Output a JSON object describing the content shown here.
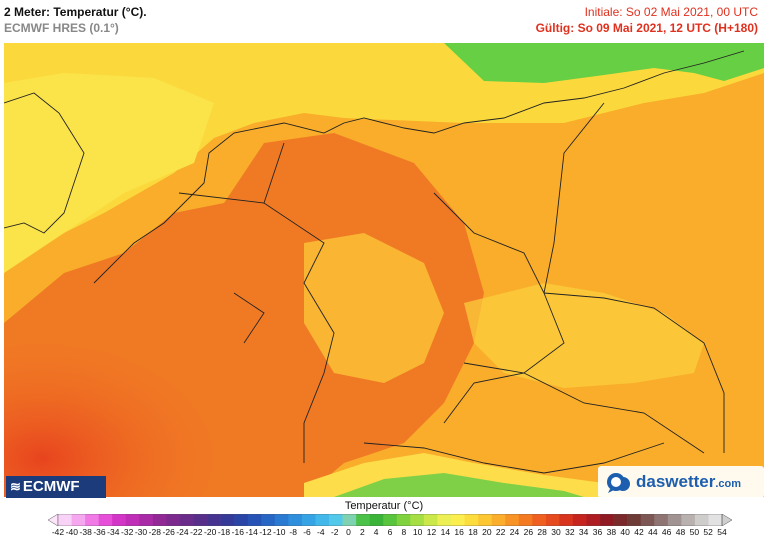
{
  "header": {
    "title": "2 Meter: Temperatur (°C).",
    "model": "ECMWF HRES (0.1°)",
    "initial": "Initiale: So 02 Mai 2021, 00 UTC",
    "valid": "Gültig: So 09 Mai 2021, 12 UTC (H+180)"
  },
  "logos": {
    "ecmwf": "ECMWF",
    "daswetter_main": "daswetter",
    "daswetter_tld": ".com"
  },
  "colorbar": {
    "title": "Temperatur (°C)",
    "ticks": [
      "-42",
      "-40",
      "-38",
      "-36",
      "-34",
      "-32",
      "-30",
      "-28",
      "-26",
      "-24",
      "-22",
      "-20",
      "-18",
      "-16",
      "-14",
      "-12",
      "-10",
      "-8",
      "-6",
      "-4",
      "-2",
      "0",
      "2",
      "4",
      "6",
      "8",
      "10",
      "12",
      "14",
      "16",
      "18",
      "20",
      "22",
      "24",
      "26",
      "28",
      "30",
      "32",
      "34",
      "36",
      "38",
      "40",
      "42",
      "44",
      "46",
      "48",
      "50",
      "52",
      "54"
    ],
    "colors": [
      "#f9d3f7",
      "#f5a8f0",
      "#f07ae6",
      "#e64fd8",
      "#d335c6",
      "#c02eb8",
      "#a82aa6",
      "#922896",
      "#7d2a8e",
      "#6a2c8a",
      "#572e89",
      "#46338f",
      "#353998",
      "#2a45a6",
      "#2653b5",
      "#2766c4",
      "#2a7ad1",
      "#2f8fdc",
      "#36a4e4",
      "#42b8ea",
      "#52c9ea",
      "#7fd2b0",
      "#4cc24a",
      "#3bb338",
      "#59c43d",
      "#80d23f",
      "#a6df44",
      "#cbe84a",
      "#ecf054",
      "#fcee4e",
      "#fddc3e",
      "#fdc734",
      "#fbae2c",
      "#f89426",
      "#f47a22",
      "#ef6020",
      "#e64a1f",
      "#d8341e",
      "#c5241f",
      "#ad1d22",
      "#8f1a24",
      "#7a2a2a",
      "#6e3b36",
      "#7c5754",
      "#8e7472",
      "#a19392",
      "#b8b1b0",
      "#cfcccc",
      "#e2e2e2"
    ],
    "low_color": "#fde4fb",
    "high_color": "#cfcfcf"
  }
}
